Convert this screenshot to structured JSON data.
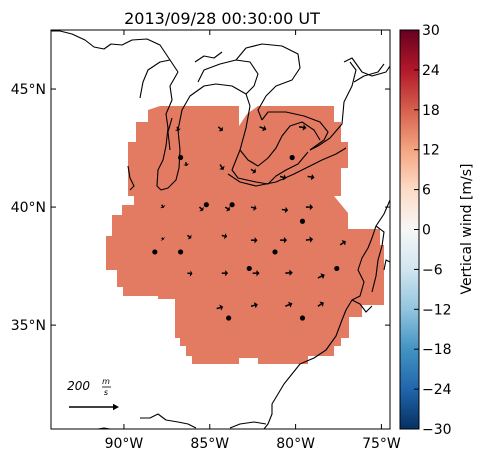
{
  "chart_data": {
    "type": "map-vector-field",
    "title": "2013/09/28 00:30:00 UT",
    "x_axis": {
      "range": [
        -94.25,
        -74.5
      ],
      "ticks": [
        -90,
        -85,
        -80,
        -75
      ],
      "tick_labels": [
        "90°W",
        "85°W",
        "80°W",
        "75°W"
      ]
    },
    "y_axis": {
      "range": [
        30.6,
        47.5
      ],
      "ticks": [
        35,
        40,
        45
      ],
      "tick_labels": [
        "35°N",
        "40°N",
        "45°N"
      ]
    },
    "colorbar": {
      "label": "Vertical wind [m/s]",
      "range": [
        -30,
        30
      ],
      "ticks": [
        30,
        24,
        18,
        12,
        6,
        0,
        -6,
        -12,
        -18,
        -24,
        -30
      ],
      "tick_labels": [
        "30",
        "24",
        "18",
        "12",
        "6",
        "0",
        "−6",
        "−12",
        "−18",
        "−24",
        "−30"
      ],
      "colormap": "RdBu_r"
    },
    "field": {
      "value": 17,
      "color": "#e37b63",
      "coverage_note": "uniform value over all radar footprints"
    },
    "scale_label": "200 m/s",
    "scale_label_parts": {
      "value": "200",
      "num": "m",
      "den": "s"
    },
    "scale_magnitude": 200,
    "vectors": [
      {
        "lon": -86.9,
        "lat": 43.4,
        "u": 20,
        "v": -70
      },
      {
        "lon": -84.5,
        "lat": 43.4,
        "u": 70,
        "v": -65
      },
      {
        "lon": -82.1,
        "lat": 43.4,
        "u": 110,
        "v": -45
      },
      {
        "lon": -79.8,
        "lat": 43.4,
        "u": 120,
        "v": -20
      },
      {
        "lon": -86.4,
        "lat": 41.9,
        "u": 15,
        "v": -60
      },
      {
        "lon": -84.4,
        "lat": 41.8,
        "u": 55,
        "v": -85
      },
      {
        "lon": -82.6,
        "lat": 41.6,
        "u": 80,
        "v": -50
      },
      {
        "lon": -80.9,
        "lat": 41.3,
        "u": 100,
        "v": -30
      },
      {
        "lon": -79.3,
        "lat": 41.3,
        "u": 110,
        "v": -20
      },
      {
        "lon": -87.8,
        "lat": 40.1,
        "u": 30,
        "v": -50
      },
      {
        "lon": -85.6,
        "lat": 40.0,
        "u": 60,
        "v": -55
      },
      {
        "lon": -84.1,
        "lat": 40.0,
        "u": 75,
        "v": -50
      },
      {
        "lon": -82.6,
        "lat": 40.0,
        "u": 90,
        "v": -25
      },
      {
        "lon": -80.8,
        "lat": 39.9,
        "u": 100,
        "v": -15
      },
      {
        "lon": -79.4,
        "lat": 40.0,
        "u": 115,
        "v": 0
      },
      {
        "lon": -87.8,
        "lat": 38.7,
        "u": 30,
        "v": -30
      },
      {
        "lon": -86.3,
        "lat": 38.8,
        "u": 60,
        "v": -45
      },
      {
        "lon": -84.3,
        "lat": 38.8,
        "u": 85,
        "v": -20
      },
      {
        "lon": -82.6,
        "lat": 38.6,
        "u": 105,
        "v": -5
      },
      {
        "lon": -80.9,
        "lat": 38.6,
        "u": 110,
        "v": 0
      },
      {
        "lon": -79.4,
        "lat": 38.6,
        "u": 115,
        "v": 15
      },
      {
        "lon": -77.4,
        "lat": 38.4,
        "u": 90,
        "v": 60
      },
      {
        "lon": -86.3,
        "lat": 37.2,
        "u": 80,
        "v": -10
      },
      {
        "lon": -84.3,
        "lat": 37.2,
        "u": 100,
        "v": 0
      },
      {
        "lon": -82.5,
        "lat": 37.2,
        "u": 110,
        "v": 0
      },
      {
        "lon": -80.6,
        "lat": 37.2,
        "u": 120,
        "v": 10
      },
      {
        "lon": -78.7,
        "lat": 37.0,
        "u": 110,
        "v": 50
      },
      {
        "lon": -84.6,
        "lat": 35.7,
        "u": 105,
        "v": 30
      },
      {
        "lon": -82.6,
        "lat": 35.8,
        "u": 110,
        "v": 30
      },
      {
        "lon": -80.6,
        "lat": 35.8,
        "u": 115,
        "v": 45
      },
      {
        "lon": -78.7,
        "lat": 35.8,
        "u": 95,
        "v": 60
      }
    ],
    "radar_sites": [
      {
        "lon": -86.7,
        "lat": 42.1
      },
      {
        "lon": -85.2,
        "lat": 40.1
      },
      {
        "lon": -83.7,
        "lat": 40.1
      },
      {
        "lon": -80.2,
        "lat": 42.1
      },
      {
        "lon": -79.6,
        "lat": 39.4
      },
      {
        "lon": -88.2,
        "lat": 38.1
      },
      {
        "lon": -86.7,
        "lat": 38.1
      },
      {
        "lon": -82.7,
        "lat": 37.4
      },
      {
        "lon": -81.2,
        "lat": 38.1
      },
      {
        "lon": -77.6,
        "lat": 37.4
      },
      {
        "lon": -83.9,
        "lat": 35.3
      },
      {
        "lon": -79.6,
        "lat": 35.3
      }
    ]
  }
}
